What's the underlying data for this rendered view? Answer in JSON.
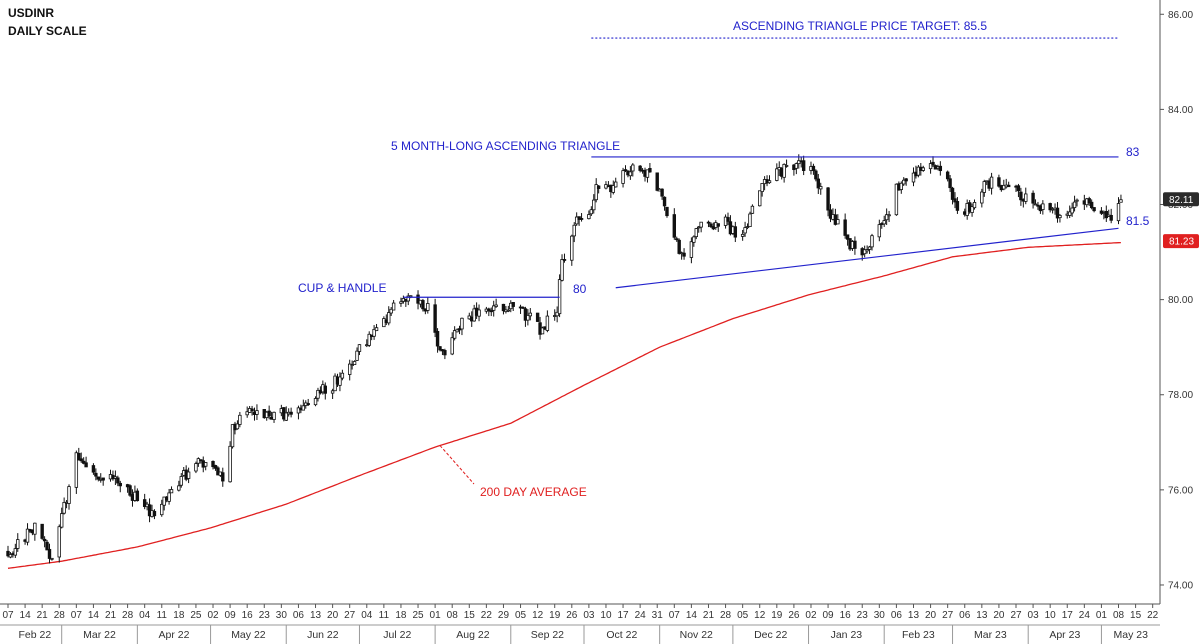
{
  "chart_data": {
    "type": "candlestick",
    "title": "USDINR",
    "subtitle": "DAILY SCALE",
    "y_axis": {
      "side": "right",
      "range": [
        73.6,
        86.3
      ],
      "ticks": [
        "74.00",
        "76.00",
        "78.00",
        "80.00",
        "82.00",
        "84.00",
        "86.00"
      ]
    },
    "x_axis": {
      "day_ticks": [
        "07",
        "14",
        "21",
        "28",
        "07",
        "14",
        "21",
        "28",
        "04",
        "11",
        "18",
        "25",
        "02",
        "09",
        "16",
        "23",
        "30",
        "06",
        "13",
        "20",
        "27",
        "04",
        "11",
        "18",
        "25",
        "01",
        "08",
        "15",
        "22",
        "29",
        "05",
        "12",
        "19",
        "26",
        "03",
        "10",
        "17",
        "24",
        "31",
        "07",
        "14",
        "21",
        "28",
        "05",
        "12",
        "19",
        "26",
        "02",
        "09",
        "16",
        "23",
        "30",
        "06",
        "13",
        "20",
        "27",
        "06",
        "13",
        "20",
        "27",
        "03",
        "10",
        "17",
        "24",
        "01",
        "08",
        "15",
        "22"
      ],
      "month_labels": [
        "Feb 22",
        "Mar 22",
        "Apr 22",
        "May 22",
        "Jun 22",
        "Jul 22",
        "Aug 22",
        "Sep 22",
        "Oct 22",
        "Nov 22",
        "Dec 22",
        "Jan 23",
        "Feb 23",
        "Mar 23",
        "Apr 23",
        "May 23"
      ]
    },
    "price_series": {
      "name": "USDINR",
      "keypoints": [
        [
          "2022-02-07",
          74.7
        ],
        [
          "2022-02-18",
          75.2
        ],
        [
          "2022-02-25",
          74.6
        ],
        [
          "2022-03-04",
          76.0
        ],
        [
          "2022-03-07",
          76.8
        ],
        [
          "2022-03-14",
          76.4
        ],
        [
          "2022-03-28",
          76.0
        ],
        [
          "2022-04-04",
          75.7
        ],
        [
          "2022-04-08",
          75.4
        ],
        [
          "2022-04-18",
          76.2
        ],
        [
          "2022-04-28",
          76.6
        ],
        [
          "2022-05-06",
          76.2
        ],
        [
          "2022-05-10",
          77.3
        ],
        [
          "2022-05-17",
          77.6
        ],
        [
          "2022-05-31",
          77.6
        ],
        [
          "2022-06-10",
          77.9
        ],
        [
          "2022-06-20",
          78.2
        ],
        [
          "2022-06-30",
          78.9
        ],
        [
          "2022-07-08",
          79.3
        ],
        [
          "2022-07-15",
          79.8
        ],
        [
          "2022-07-21",
          80.0
        ],
        [
          "2022-07-29",
          79.8
        ],
        [
          "2022-08-03",
          79.0
        ],
        [
          "2022-08-05",
          78.7
        ],
        [
          "2022-08-12",
          79.6
        ],
        [
          "2022-08-22",
          79.8
        ],
        [
          "2022-08-29",
          79.9
        ],
        [
          "2022-09-07",
          79.7
        ],
        [
          "2022-09-13",
          79.4
        ],
        [
          "2022-09-20",
          79.8
        ],
        [
          "2022-09-22",
          80.8
        ],
        [
          "2022-09-27",
          81.6
        ],
        [
          "2022-10-03",
          81.8
        ],
        [
          "2022-10-06",
          82.4
        ],
        [
          "2022-10-12",
          82.3
        ],
        [
          "2022-10-19",
          82.7
        ],
        [
          "2022-10-28",
          82.7
        ],
        [
          "2022-11-04",
          81.9
        ],
        [
          "2022-11-09",
          81.1
        ],
        [
          "2022-11-11",
          80.8
        ],
        [
          "2022-11-18",
          81.6
        ],
        [
          "2022-11-28",
          81.6
        ],
        [
          "2022-12-05",
          81.3
        ],
        [
          "2022-12-12",
          82.3
        ],
        [
          "2022-12-19",
          82.7
        ],
        [
          "2022-12-29",
          82.8
        ],
        [
          "2023-01-04",
          82.6
        ],
        [
          "2023-01-10",
          81.8
        ],
        [
          "2023-01-18",
          81.2
        ],
        [
          "2023-01-24",
          81.0
        ],
        [
          "2023-02-01",
          81.6
        ],
        [
          "2023-02-06",
          82.3
        ],
        [
          "2023-02-14",
          82.7
        ],
        [
          "2023-02-23",
          82.8
        ],
        [
          "2023-02-28",
          82.4
        ],
        [
          "2023-03-03",
          81.9
        ],
        [
          "2023-03-08",
          81.9
        ],
        [
          "2023-03-14",
          82.5
        ],
        [
          "2023-03-22",
          82.4
        ],
        [
          "2023-03-30",
          82.2
        ],
        [
          "2023-04-06",
          81.9
        ],
        [
          "2023-04-13",
          81.8
        ],
        [
          "2023-04-20",
          82.0
        ],
        [
          "2023-04-25",
          82.0
        ],
        [
          "2023-05-01",
          81.8
        ],
        [
          "2023-05-05",
          81.7
        ],
        [
          "2023-05-09",
          82.1
        ]
      ]
    },
    "moving_average": {
      "name": "200 DAY AVERAGE",
      "color": "#e02020",
      "keypoints": [
        [
          "2022-02-07",
          74.35
        ],
        [
          "2022-03-01",
          74.5
        ],
        [
          "2022-04-01",
          74.8
        ],
        [
          "2022-05-01",
          75.2
        ],
        [
          "2022-06-01",
          75.7
        ],
        [
          "2022-07-01",
          76.3
        ],
        [
          "2022-08-01",
          76.9
        ],
        [
          "2022-09-01",
          77.4
        ],
        [
          "2022-10-01",
          78.2
        ],
        [
          "2022-11-01",
          79.0
        ],
        [
          "2022-12-01",
          79.6
        ],
        [
          "2023-01-01",
          80.1
        ],
        [
          "2023-02-01",
          80.5
        ],
        [
          "2023-03-01",
          80.9
        ],
        [
          "2023-04-01",
          81.1
        ],
        [
          "2023-05-09",
          81.2
        ]
      ]
    },
    "last_price": "82.11",
    "last_ma": "81.23",
    "annotations": {
      "target": {
        "text": "ASCENDING TRIANGLE PRICE TARGET: 85.5",
        "value": 85.5,
        "from": "2022-10-04",
        "to": "2023-05-08"
      },
      "triangle_label": "5 MONTH-LONG ASCENDING TRIANGLE",
      "triangle_top": {
        "text": "83",
        "value": 83.0,
        "from": "2022-10-04",
        "to": "2023-05-08"
      },
      "triangle_bottom": {
        "text": "81.5",
        "from": [
          "2022-10-14",
          80.25
        ],
        "to": [
          "2023-05-08",
          81.5
        ]
      },
      "cup_handle_label": "CUP & HANDLE",
      "cup_handle_line": {
        "text": "80",
        "value": 80.05,
        "from": "2022-07-19",
        "to": "2022-09-21"
      },
      "ma_label": "200 DAY AVERAGE"
    }
  }
}
